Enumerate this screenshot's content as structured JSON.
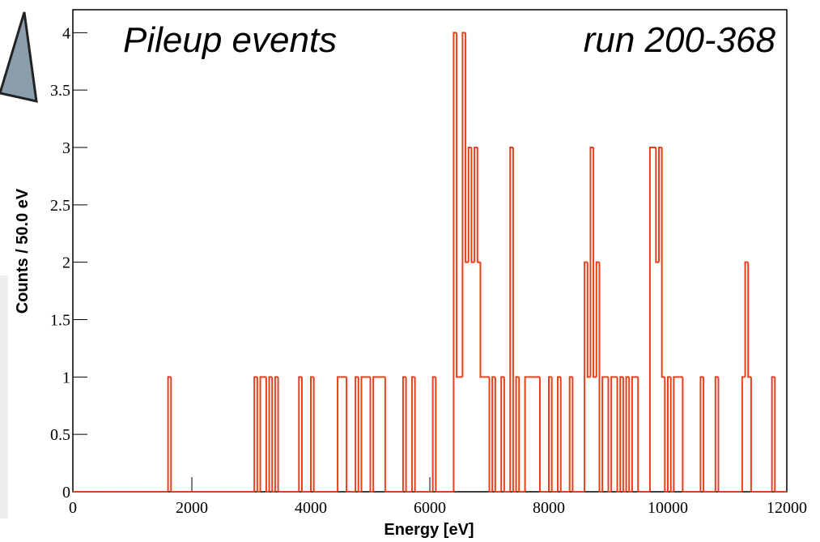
{
  "chart_data": {
    "type": "histogram",
    "xlabel": "Energy [eV]",
    "ylabel": "Counts / 50.0 eV",
    "annotations": [
      "Pileup events",
      "run 200-368"
    ],
    "color": "#e8401c",
    "xlim": [
      0,
      12000
    ],
    "ylim": [
      0,
      4.2
    ],
    "xticks": [
      0,
      2000,
      4000,
      6000,
      8000,
      10000,
      12000
    ],
    "yticks": [
      0,
      0.5,
      1,
      1.5,
      2,
      2.5,
      3,
      3.5,
      4
    ],
    "bins": [
      0,
      50,
      100,
      150,
      200,
      250,
      300,
      350,
      400,
      450,
      500,
      550,
      600,
      650,
      700,
      750,
      800,
      850,
      900,
      950,
      1000,
      1050,
      1100,
      1150,
      1200,
      1250,
      1300,
      1350,
      1400,
      1450,
      1500,
      1550,
      1600,
      1650,
      1700,
      1750,
      1800,
      1850,
      1900,
      1950,
      2000,
      2050,
      2100,
      2150,
      2200,
      2250,
      2300,
      2350,
      2400,
      2450,
      2500,
      2550,
      2600,
      2650,
      2700,
      2750,
      2800,
      2850,
      2900,
      2950,
      3000,
      3050,
      3100,
      3150,
      3200,
      3250,
      3300,
      3350,
      3400,
      3450,
      3500,
      3550,
      3600,
      3650,
      3700,
      3750,
      3800,
      3850,
      3900,
      3950,
      4000,
      4050,
      4100,
      4150,
      4200,
      4250,
      4300,
      4350,
      4400,
      4450,
      4500,
      4550,
      4600,
      4650,
      4700,
      4750,
      4800,
      4850,
      4900,
      4950,
      5000,
      5050,
      5100,
      5150,
      5200,
      5250,
      5300,
      5350,
      5400,
      5450,
      5500,
      5550,
      5600,
      5650,
      5700,
      5750,
      5800,
      5850,
      5900,
      5950,
      6000,
      6050,
      6100,
      6150,
      6200,
      6250,
      6300,
      6350,
      6400,
      6450,
      6500,
      6550,
      6600,
      6650,
      6700,
      6750,
      6800,
      6850,
      6900,
      6950,
      7000,
      7050,
      7100,
      7150,
      7200,
      7250,
      7300,
      7350,
      7400,
      7450,
      7500,
      7550,
      7600,
      7650,
      7700,
      7750,
      7800,
      7850,
      7900,
      7950,
      8000,
      8050,
      8100,
      8150,
      8200,
      8250,
      8300,
      8350,
      8400,
      8450,
      8500,
      8550,
      8600,
      8650,
      8700,
      8750,
      8800,
      8850,
      8900,
      8950,
      9000,
      9050,
      9100,
      9150,
      9200,
      9250,
      9300,
      9350,
      9400,
      9450,
      9500,
      9550,
      9600,
      9650,
      9700,
      9750,
      9800,
      9850,
      9900,
      9950,
      10000,
      10050,
      10100,
      10150,
      10200,
      10250,
      10300,
      10350,
      10400,
      10450,
      10500,
      10550,
      10600,
      10650,
      10700,
      10750,
      10800,
      10850,
      10900,
      10950,
      11000,
      11050,
      11100,
      11150,
      11200,
      11250,
      11300,
      11350,
      11400,
      11450,
      11500,
      11550,
      11600,
      11650,
      11700,
      11750,
      11800,
      11850,
      11900,
      11950,
      12000
    ],
    "counts": [
      0,
      0,
      0,
      0,
      0,
      0,
      0,
      0,
      0,
      0,
      0,
      0,
      0,
      0,
      0,
      0,
      0,
      0,
      0,
      0,
      0,
      0,
      0,
      0,
      0,
      0,
      0,
      0,
      0,
      0,
      0,
      0,
      1,
      0,
      0,
      0,
      0,
      0,
      0,
      0,
      0,
      0,
      0,
      0,
      0,
      0,
      0,
      0,
      0,
      0,
      0,
      0,
      0,
      0,
      0,
      0,
      0,
      0,
      0,
      0,
      0,
      1,
      0,
      1,
      1,
      0,
      1,
      0,
      1,
      0,
      0,
      0,
      0,
      0,
      0,
      0,
      1,
      0,
      0,
      0,
      1,
      0,
      0,
      0,
      0,
      0,
      0,
      0,
      0,
      1,
      1,
      1,
      0,
      0,
      0,
      1,
      0,
      1,
      1,
      1,
      0,
      1,
      1,
      1,
      1,
      0,
      0,
      0,
      0,
      0,
      0,
      1,
      0,
      0,
      1,
      0,
      0,
      0,
      0,
      0,
      0,
      1,
      0,
      0,
      0,
      0,
      0,
      0,
      4,
      1,
      1,
      4,
      2,
      3,
      2,
      3,
      2,
      1,
      1,
      1,
      0,
      1,
      0,
      0,
      1,
      0,
      0,
      3,
      0,
      1,
      0,
      0,
      1,
      1,
      1,
      1,
      1,
      0,
      0,
      0,
      1,
      0,
      0,
      1,
      0,
      0,
      0,
      1,
      0,
      0,
      0,
      0,
      2,
      1,
      3,
      1,
      2,
      0,
      1,
      1,
      0,
      1,
      1,
      0,
      1,
      0,
      1,
      0,
      1,
      1,
      0,
      0,
      0,
      0,
      3,
      3,
      2,
      3,
      1,
      0,
      1,
      0,
      1,
      1,
      1,
      0,
      0,
      0,
      0,
      0,
      0,
      1,
      0,
      0,
      0,
      0,
      1,
      0,
      0,
      0,
      0,
      0,
      0,
      0,
      0,
      1,
      2,
      1,
      0,
      0,
      0,
      0,
      0,
      0,
      0,
      1,
      0,
      0,
      0,
      0
    ]
  }
}
